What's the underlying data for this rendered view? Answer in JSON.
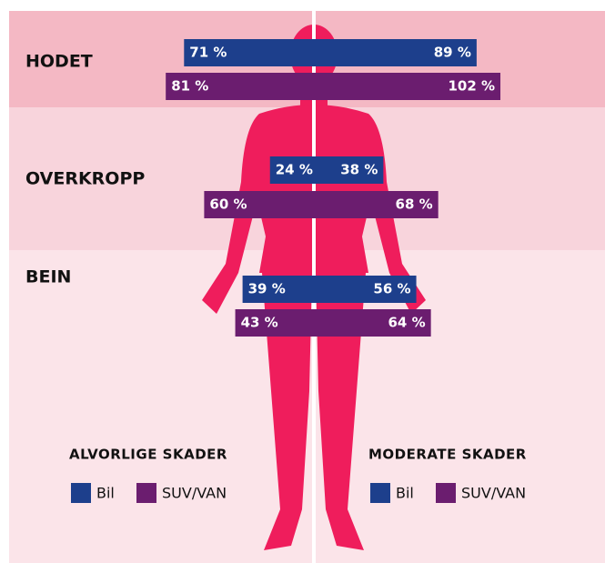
{
  "chart_data": {
    "type": "butterfly",
    "categories": [
      "HODET",
      "OVERKROPP",
      "BEIN"
    ],
    "left": {
      "title": "ALVORLIGE SKADER",
      "series": [
        {
          "name": "Bil",
          "color": "#1d3f8c",
          "values": [
            71,
            24,
            39
          ],
          "value_labels": [
            "71 %",
            "24 %",
            "39 %"
          ]
        },
        {
          "name": "SUV/VAN",
          "color": "#6b1d6f",
          "values": [
            81,
            60,
            43
          ],
          "value_labels": [
            "81 %",
            "60 %",
            "43 %"
          ]
        }
      ]
    },
    "right": {
      "title": "MODERATE SKADER",
      "series": [
        {
          "name": "Bil",
          "color": "#1d3f8c",
          "values": [
            89,
            38,
            56
          ],
          "value_labels": [
            "89 %",
            "38 %",
            "56 %"
          ]
        },
        {
          "name": "SUV/VAN",
          "color": "#6b1d6f",
          "values": [
            102,
            68,
            64
          ],
          "value_labels": [
            "102 %",
            "68 %",
            "64 %"
          ]
        }
      ]
    }
  }
}
